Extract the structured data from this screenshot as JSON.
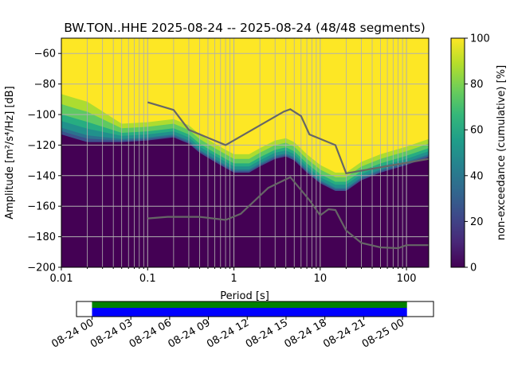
{
  "chart_data": {
    "type": "heatmap",
    "title": "BW.TON..HHE   2025-08-24 -- 2025-08-24  (48/48 segments)",
    "xlabel": "Period [s]",
    "ylabel": "Amplitude [m²/s⁴/Hz] [dB]",
    "xscale": "log",
    "xlim": [
      0.01,
      181
    ],
    "ylim": [
      -200,
      -50
    ],
    "xticks": [
      {
        "v": 0.01,
        "label": "0.01"
      },
      {
        "v": 0.1,
        "label": "0.1"
      },
      {
        "v": 1,
        "label": "1"
      },
      {
        "v": 10,
        "label": "10"
      },
      {
        "v": 100,
        "label": "100"
      }
    ],
    "yticks": [
      -60,
      -80,
      -100,
      -120,
      -140,
      -160,
      -180,
      -200
    ],
    "grid": true,
    "colorbar": {
      "label": "non-exceedance (cumulative) [%]",
      "ticks": [
        0,
        20,
        40,
        60,
        80,
        100
      ],
      "range": [
        0,
        100
      ],
      "colormap": "viridis"
    },
    "density_lower_edge": [
      [
        0.01,
        -113
      ],
      [
        0.015,
        -116
      ],
      [
        0.02,
        -118
      ],
      [
        0.05,
        -118
      ],
      [
        0.1,
        -117
      ],
      [
        0.2,
        -115
      ],
      [
        0.3,
        -119
      ],
      [
        0.4,
        -125
      ],
      [
        0.6,
        -131
      ],
      [
        0.8,
        -135
      ],
      [
        1,
        -138
      ],
      [
        1.5,
        -138
      ],
      [
        2,
        -134
      ],
      [
        3,
        -129
      ],
      [
        4,
        -127.5
      ],
      [
        5,
        -130
      ],
      [
        7,
        -138
      ],
      [
        10,
        -145
      ],
      [
        15,
        -150
      ],
      [
        20,
        -150
      ],
      [
        30,
        -143
      ],
      [
        50,
        -138
      ],
      [
        100,
        -133
      ],
      [
        181,
        -128
      ]
    ],
    "high_noise_model": [
      [
        0.1,
        -92
      ],
      [
        0.2,
        -97
      ],
      [
        0.3,
        -110
      ],
      [
        0.8,
        -120
      ],
      [
        3.8,
        -98
      ],
      [
        4.5,
        -96.5
      ],
      [
        6,
        -101
      ],
      [
        7.5,
        -113
      ],
      [
        15,
        -120
      ],
      [
        20,
        -138.5
      ],
      [
        181,
        -129
      ]
    ],
    "low_noise_model": [
      [
        0.1,
        -168
      ],
      [
        0.17,
        -167
      ],
      [
        0.4,
        -167
      ],
      [
        0.8,
        -169
      ],
      [
        1.2,
        -165
      ],
      [
        2.5,
        -148
      ],
      [
        4.5,
        -141
      ],
      [
        7.5,
        -156
      ],
      [
        10,
        -166
      ],
      [
        12.5,
        -162
      ],
      [
        15,
        -162.5
      ],
      [
        20,
        -176
      ],
      [
        30,
        -184
      ],
      [
        50,
        -187
      ],
      [
        80,
        -187.5
      ],
      [
        100,
        -185.5
      ],
      [
        181,
        -185.5
      ]
    ],
    "coverage": {
      "ticks": [
        "08-24 00",
        "08-24 03",
        "08-24 06",
        "08-24 09",
        "08-24 12",
        "08-24 15",
        "08-24 18",
        "08-24 21",
        "08-25 00"
      ],
      "span_hours": [
        0,
        24.35
      ],
      "axis_hours": [
        -1.2,
        26.4
      ],
      "colors": {
        "data": "#008000",
        "used": "#0000ff"
      }
    }
  }
}
